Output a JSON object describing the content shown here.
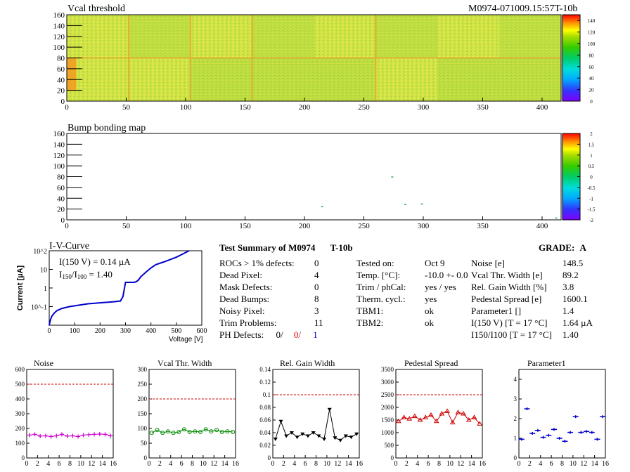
{
  "header": {
    "module_id": "M0974-071009.15:57T-10b"
  },
  "colors": {
    "plot_frame": "#000000",
    "threshold_line": "#cc0000",
    "iv_curve": "#0000cc",
    "noise": "#cc00cc",
    "vcal": "#008800",
    "gain": "#000000",
    "pedestal": "#cc0000",
    "parameter1": "#0000cc"
  },
  "summary": {
    "title": "Test Summary of M0974",
    "module_type": "T-10b",
    "grade_label": "GRADE:",
    "grade": "A",
    "left": {
      "rows": [
        {
          "label": "ROCs > 1% defects:",
          "value": "0"
        },
        {
          "label": "Dead Pixel:",
          "value": "4"
        },
        {
          "label": "Mask Defects:",
          "value": "0"
        },
        {
          "label": "Dead Bumps:",
          "value": "8"
        },
        {
          "label": "Noisy Pixel:",
          "value": "3"
        },
        {
          "label": "Trim Problems:",
          "value": "11"
        }
      ],
      "ph_label": "PH Defects:",
      "ph_values": [
        "0/",
        "0/",
        "1"
      ]
    },
    "middle": [
      {
        "label": "Tested on:",
        "value": "Oct 9"
      },
      {
        "label": "Temp. [°C]:",
        "value": "-10.0 +- 0.0"
      },
      {
        "label": "Trim / phCal:",
        "value": "yes / yes"
      },
      {
        "label": "Therm. cycl.:",
        "value": "yes"
      },
      {
        "label": "TBM1:",
        "value": "ok"
      },
      {
        "label": "TBM2:",
        "value": "ok"
      }
    ],
    "right": [
      {
        "label": "Noise [e]",
        "value": "148.5"
      },
      {
        "label": "Vcal Thr. Width [e]",
        "value": "89.2"
      },
      {
        "label": "Rel. Gain Width [%]",
        "value": "3.8"
      },
      {
        "label": "Pedestal Spread [e]",
        "value": "1600.1"
      },
      {
        "label": "Parameter1 []",
        "value": "1.4"
      },
      {
        "label": "I(150 V) [T = 17 °C]",
        "value": "1.64 µA"
      },
      {
        "label": "I150/I100 [T = 17 °C]",
        "value": "1.40"
      }
    ]
  },
  "chart_data": [
    {
      "type": "heatmap",
      "title": "Vcal threshold",
      "x_range": [
        0,
        416
      ],
      "y_range": [
        0,
        160
      ],
      "x_ticks": [
        0,
        50,
        100,
        150,
        200,
        250,
        300,
        350,
        400
      ],
      "y_ticks": [
        0,
        20,
        40,
        60,
        80,
        100,
        120,
        140,
        160
      ],
      "colorbar_ticks": [
        0,
        20,
        40,
        60,
        80,
        100,
        120,
        140
      ],
      "colorbar_range": [
        0,
        150
      ],
      "typical_value": 110,
      "description_values": "roughly uniform ~100-120 with higher values near x=0-10 and at ROC edges (x≈52,104,156,260,312,364)"
    },
    {
      "type": "heatmap",
      "title": "Bump bonding map",
      "x_range": [
        0,
        416
      ],
      "y_range": [
        0,
        160
      ],
      "x_ticks": [
        0,
        50,
        100,
        150,
        200,
        250,
        300,
        350,
        400
      ],
      "y_ticks": [
        0,
        20,
        40,
        60,
        80,
        100,
        120,
        140,
        160
      ],
      "colorbar_ticks": [
        2,
        1.5,
        1,
        0.5,
        0,
        -0.5,
        -1,
        -1.5,
        -2
      ],
      "colorbar_range": [
        -2,
        2
      ],
      "points": [
        [
          273,
          79
        ],
        [
          284,
          28
        ],
        [
          298,
          29
        ],
        [
          214,
          24
        ],
        [
          411,
          3
        ]
      ]
    },
    {
      "type": "line",
      "title": "I-V-Curve",
      "xlabel": "Voltage [V]",
      "ylabel": "Current [µA]",
      "x_range": [
        0,
        600
      ],
      "y_range_log": [
        0.01,
        100
      ],
      "x_ticks": [
        0,
        100,
        200,
        300,
        400,
        500,
        600
      ],
      "y_ticks": [
        "10^-1",
        "1",
        "10",
        "10^2"
      ],
      "annotation1": "I(150 V) = 0.14 µA",
      "annotation2_main": "I",
      "annotation2_sub1": "150",
      "annotation2_mid": "/I",
      "annotation2_sub2": "100",
      "annotation2_val": " =  1.40",
      "x": [
        0,
        5,
        10,
        20,
        30,
        50,
        80,
        100,
        150,
        200,
        250,
        280,
        290,
        300,
        310,
        320,
        330,
        340,
        350,
        360,
        380,
        400,
        420,
        450,
        500,
        550
      ],
      "y": [
        0.01,
        0.02,
        0.03,
        0.045,
        0.06,
        0.08,
        0.1,
        0.11,
        0.14,
        0.16,
        0.18,
        0.2,
        0.35,
        2.0,
        2.0,
        2.0,
        2.0,
        2.1,
        2.6,
        4.0,
        7.0,
        12,
        18,
        25,
        45,
        100
      ]
    },
    {
      "type": "line",
      "title": "Noise",
      "x_range": [
        0,
        16
      ],
      "y_range": [
        0,
        600
      ],
      "x_ticks": [
        0,
        2,
        4,
        6,
        8,
        10,
        12,
        14,
        16
      ],
      "y_ticks": [
        0,
        100,
        200,
        300,
        400,
        500,
        600
      ],
      "threshold": 500,
      "series": [
        {
          "x": [
            0.5,
            1.5,
            2.5,
            3.5,
            4.5,
            5.5,
            6.5,
            7.5,
            8.5,
            9.5,
            10.5,
            11.5,
            12.5,
            13.5,
            14.5,
            15.5
          ],
          "values": [
            155,
            160,
            148,
            150,
            145,
            150,
            160,
            148,
            150,
            145,
            155,
            158,
            160,
            162,
            160,
            150
          ]
        }
      ]
    },
    {
      "type": "line",
      "title": "Vcal Thr. Width",
      "x_range": [
        0,
        16
      ],
      "y_range": [
        0,
        300
      ],
      "x_ticks": [
        0,
        2,
        4,
        6,
        8,
        10,
        12,
        14,
        16
      ],
      "y_ticks": [
        0,
        50,
        100,
        150,
        200,
        250,
        300
      ],
      "threshold": 200,
      "series": [
        {
          "x": [
            0.5,
            1.5,
            2.5,
            3.5,
            4.5,
            5.5,
            6.5,
            7.5,
            8.5,
            9.5,
            10.5,
            11.5,
            12.5,
            13.5,
            14.5,
            15.5
          ],
          "values": [
            85,
            95,
            85,
            90,
            85,
            88,
            97,
            88,
            90,
            88,
            97,
            90,
            95,
            88,
            90,
            88
          ]
        }
      ]
    },
    {
      "type": "line",
      "title": "Rel. Gain Width",
      "x_range": [
        0,
        16
      ],
      "y_range": [
        0,
        0.14
      ],
      "x_ticks": [
        0,
        2,
        4,
        6,
        8,
        10,
        12,
        14,
        16
      ],
      "y_ticks": [
        0,
        0.02,
        0.04,
        0.06,
        0.08,
        0.1,
        0.12,
        0.14
      ],
      "threshold": 0.1,
      "series": [
        {
          "x": [
            0.5,
            1.5,
            2.5,
            3.5,
            4.5,
            5.5,
            6.5,
            7.5,
            8.5,
            9.5,
            10.5,
            11.5,
            12.5,
            13.5,
            14.5,
            15.5
          ],
          "values": [
            0.03,
            0.058,
            0.035,
            0.04,
            0.033,
            0.038,
            0.035,
            0.04,
            0.035,
            0.03,
            0.077,
            0.032,
            0.028,
            0.035,
            0.033,
            0.038
          ]
        }
      ]
    },
    {
      "type": "line",
      "title": "Pedestal Spread",
      "x_range": [
        0,
        16
      ],
      "y_range": [
        0,
        3500
      ],
      "x_ticks": [
        0,
        2,
        4,
        6,
        8,
        10,
        12,
        14,
        16
      ],
      "y_ticks": [
        0,
        500,
        1000,
        1500,
        2000,
        2500,
        3000,
        3500
      ],
      "threshold": 2500,
      "series": [
        {
          "x": [
            0.5,
            1.5,
            2.5,
            3.5,
            4.5,
            5.5,
            6.5,
            7.5,
            8.5,
            9.5,
            10.5,
            11.5,
            12.5,
            13.5,
            14.5,
            15.5
          ],
          "values": [
            1450,
            1600,
            1550,
            1650,
            1500,
            1600,
            1700,
            1450,
            1750,
            1850,
            1400,
            1800,
            1750,
            1500,
            1600,
            1350
          ]
        }
      ]
    },
    {
      "type": "scatter",
      "title": "Parameter1",
      "x_range": [
        0,
        16
      ],
      "y_range": [
        0,
        4.5
      ],
      "x_ticks": [
        0,
        2,
        4,
        6,
        8,
        10,
        12,
        14,
        16
      ],
      "y_ticks": [
        0,
        1,
        2,
        3,
        4
      ],
      "series": [
        {
          "x": [
            0.5,
            1.5,
            2.5,
            3.5,
            4.5,
            5.5,
            6.5,
            7.5,
            8.5,
            9.5,
            10.5,
            11.5,
            12.5,
            13.5,
            14.5,
            15.5
          ],
          "values": [
            0.95,
            2.5,
            1.25,
            1.4,
            1.05,
            1.15,
            1.45,
            1.0,
            0.85,
            1.3,
            2.1,
            1.3,
            1.35,
            1.3,
            0.95,
            2.1
          ]
        }
      ]
    }
  ]
}
